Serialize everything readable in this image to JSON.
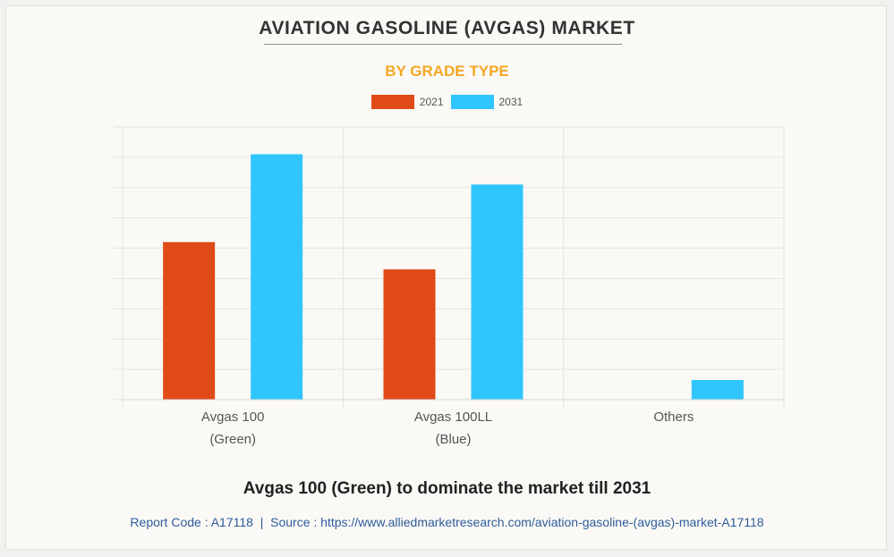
{
  "header": {
    "title": "AVIATION GASOLINE (AVGAS) MARKET",
    "subtitle": "BY GRADE TYPE"
  },
  "colors": {
    "series_2021": "#e04a17",
    "series_2031": "#30c5fc",
    "subtitle": "#f5a623",
    "grid": "#e4e4e4"
  },
  "chart_data": {
    "type": "bar",
    "title": "AVIATION GASOLINE (AVGAS) MARKET",
    "subtitle": "BY GRADE TYPE",
    "categories": [
      [
        "Avgas 100",
        "(Green)"
      ],
      [
        "Avgas 100LL",
        "(Blue)"
      ],
      [
        "Others"
      ]
    ],
    "series": [
      {
        "name": "2021",
        "values": [
          52,
          43,
          0
        ]
      },
      {
        "name": "2031",
        "values": [
          81,
          71,
          6.5
        ]
      }
    ],
    "ylim": [
      0,
      90
    ],
    "ytick_step": 10,
    "show_ytick_labels": false,
    "grid": true,
    "legend_position": "top-center",
    "xlabel": "",
    "ylabel": ""
  },
  "footer": {
    "caption": "Avgas 100 (Green) to dominate the market till 2031",
    "report_code": "Report Code : A17118",
    "separator": "|",
    "source": "Source : https://www.alliedmarketresearch.com/aviation-gasoline-(avgas)-market-A17118"
  }
}
